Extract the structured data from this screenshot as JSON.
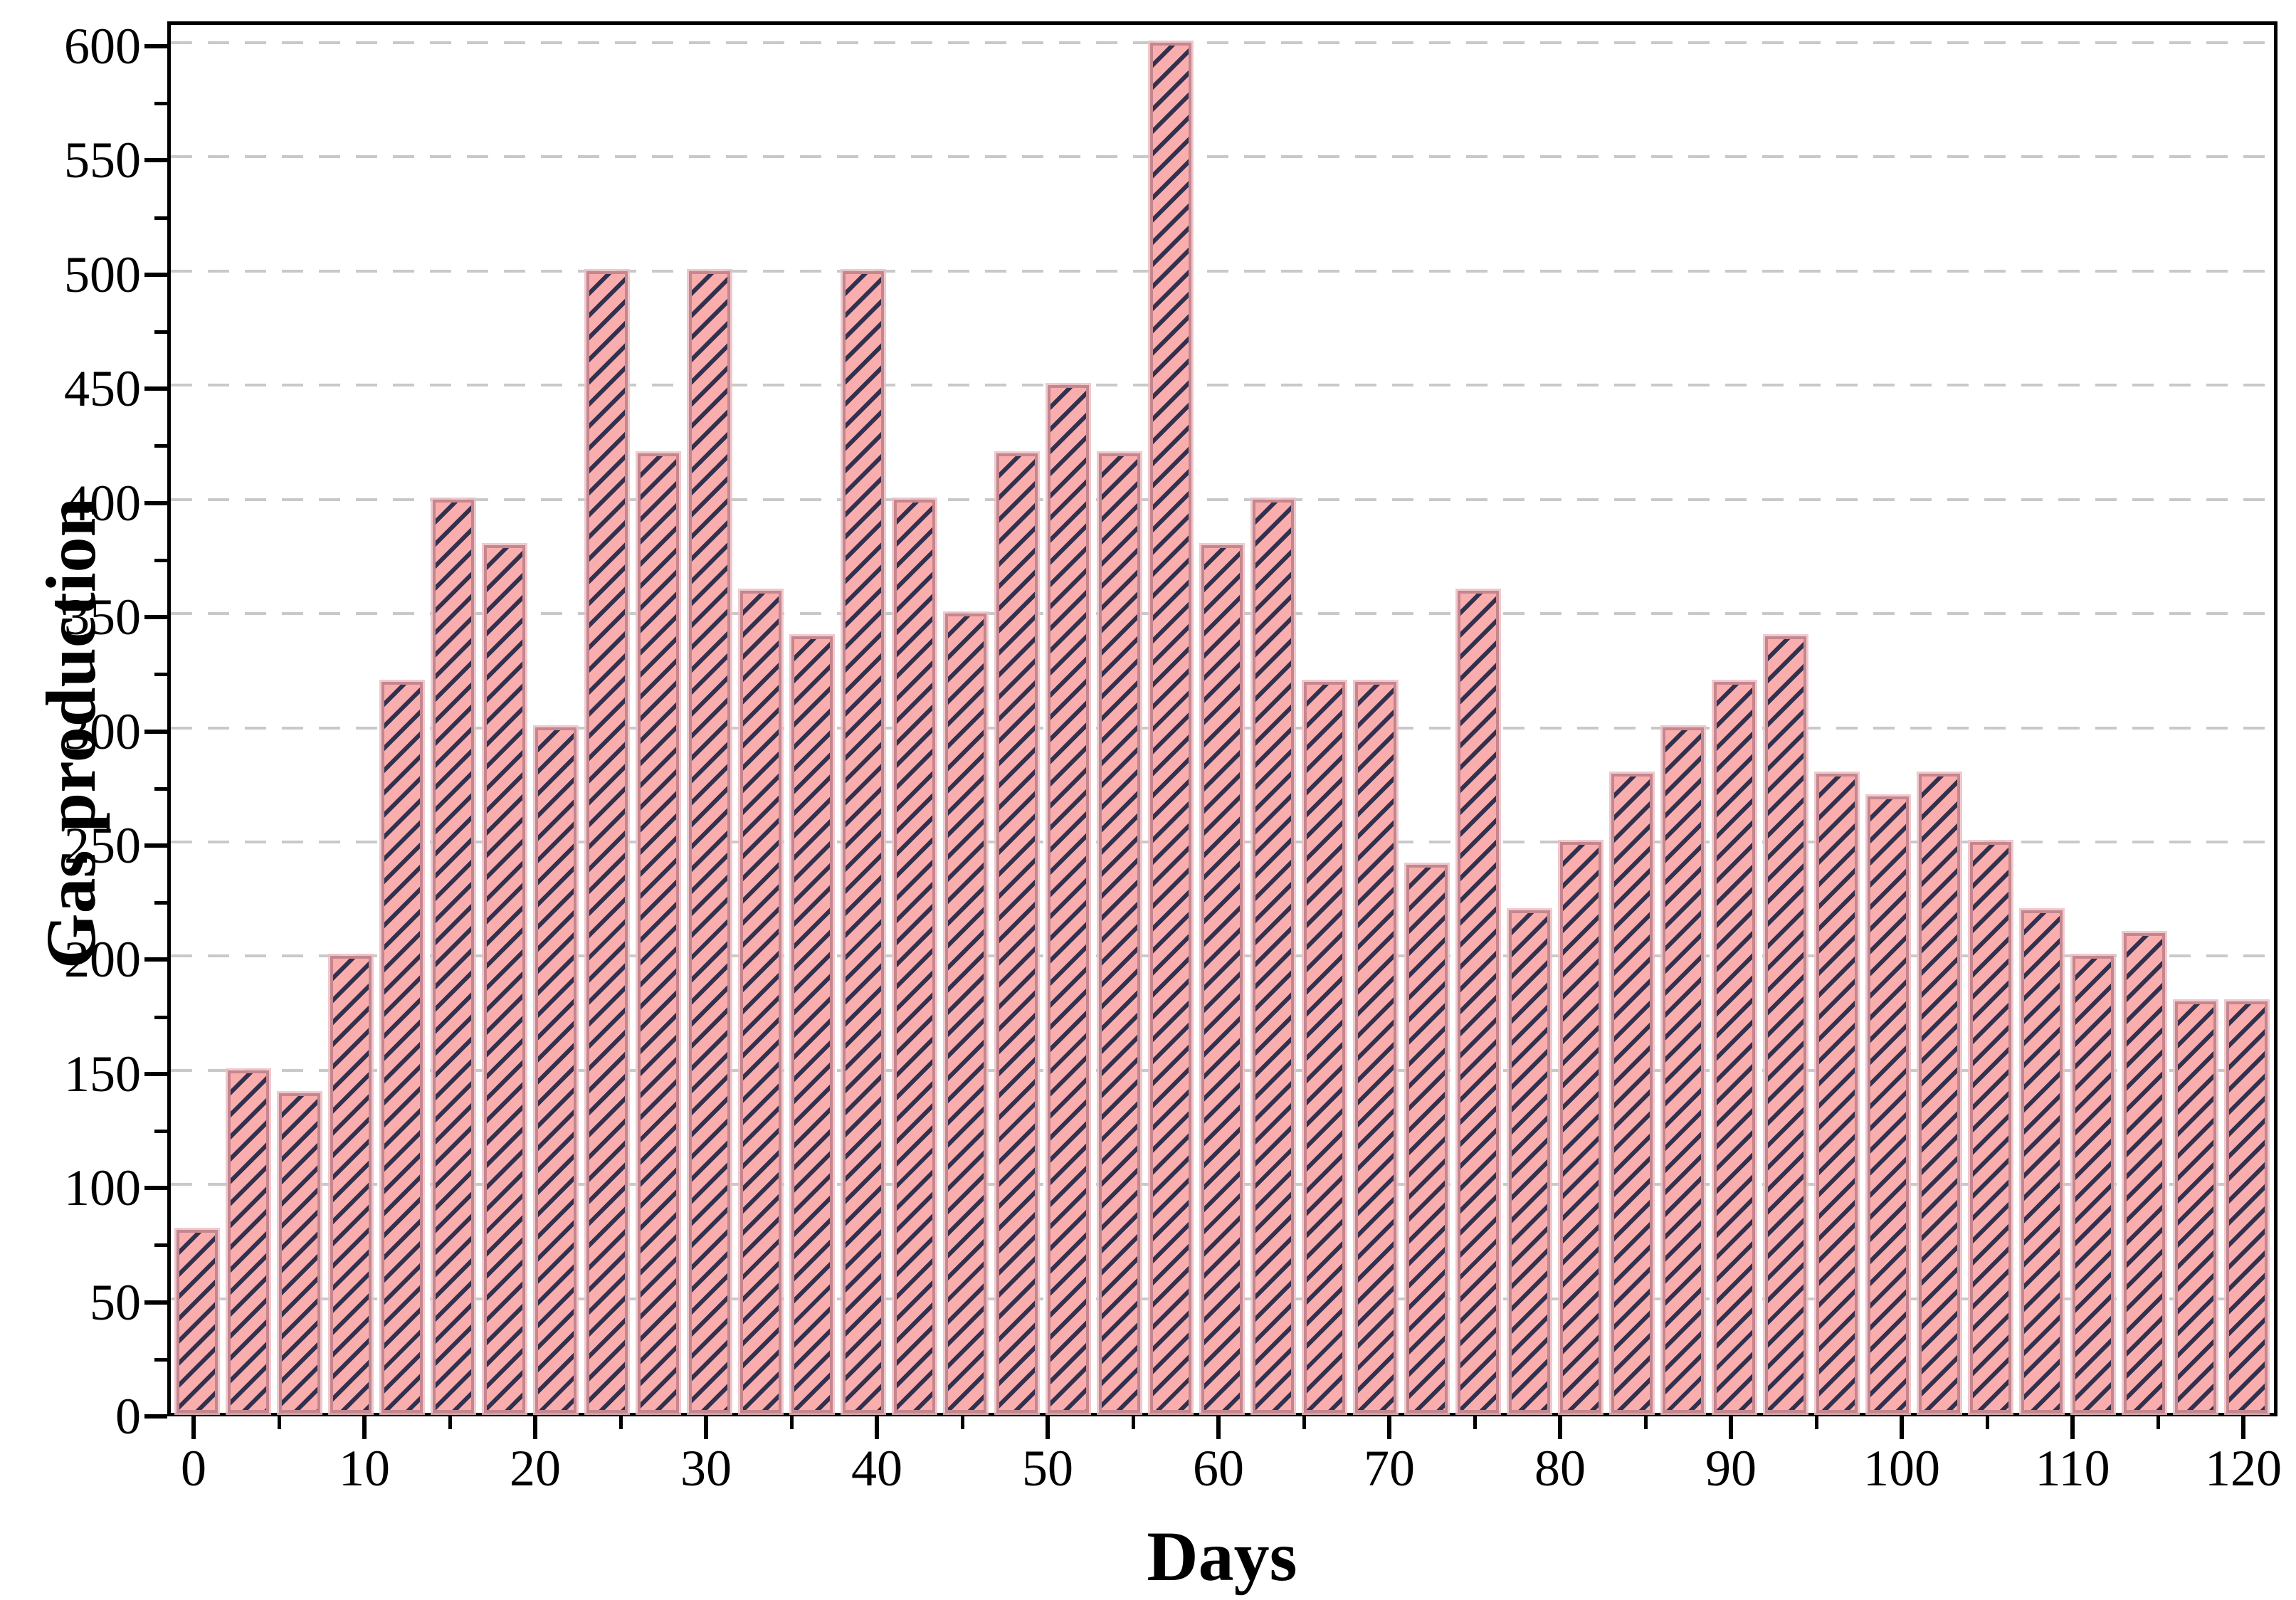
{
  "chart_data": {
    "type": "bar",
    "title": "",
    "xlabel": "Days",
    "ylabel": "Gas production",
    "x": [
      0,
      3,
      6,
      9,
      12,
      15,
      18,
      21,
      24,
      27,
      30,
      33,
      36,
      39,
      42,
      45,
      48,
      51,
      54,
      57,
      60,
      63,
      66,
      69,
      72,
      75,
      78,
      81,
      84,
      87,
      90,
      93,
      96,
      99,
      102,
      105,
      108,
      111,
      114,
      117,
      120
    ],
    "values": [
      80,
      150,
      140,
      200,
      320,
      400,
      380,
      300,
      500,
      420,
      500,
      360,
      340,
      500,
      400,
      350,
      420,
      450,
      420,
      600,
      380,
      400,
      320,
      320,
      240,
      360,
      220,
      250,
      280,
      300,
      320,
      340,
      280,
      270,
      280,
      250,
      220,
      200,
      210,
      180,
      180
    ],
    "xlim": [
      -2,
      122
    ],
    "ylim": [
      0,
      612
    ],
    "x_major_ticks": [
      0,
      10,
      20,
      30,
      40,
      50,
      60,
      70,
      80,
      90,
      100,
      110,
      120
    ],
    "x_minor_ticks": [
      5,
      15,
      25,
      35,
      45,
      55,
      65,
      75,
      85,
      95,
      105,
      115
    ],
    "y_major_ticks": [
      0,
      50,
      100,
      150,
      200,
      250,
      300,
      350,
      400,
      450,
      500,
      550,
      600
    ],
    "y_minor_ticks": [
      25,
      75,
      125,
      175,
      225,
      275,
      325,
      375,
      425,
      475,
      525,
      575
    ],
    "grid": {
      "axis": "y",
      "style": "dashed",
      "color": "#c9c9c9"
    },
    "legend": "none",
    "bar_style": {
      "fill": "#f9adad",
      "edge": "#c5868e",
      "hatch": "/",
      "hatch_color": "#31314f",
      "halo": "#ecc0c4"
    },
    "axis_color": "#000000",
    "text_color": "#000000"
  }
}
